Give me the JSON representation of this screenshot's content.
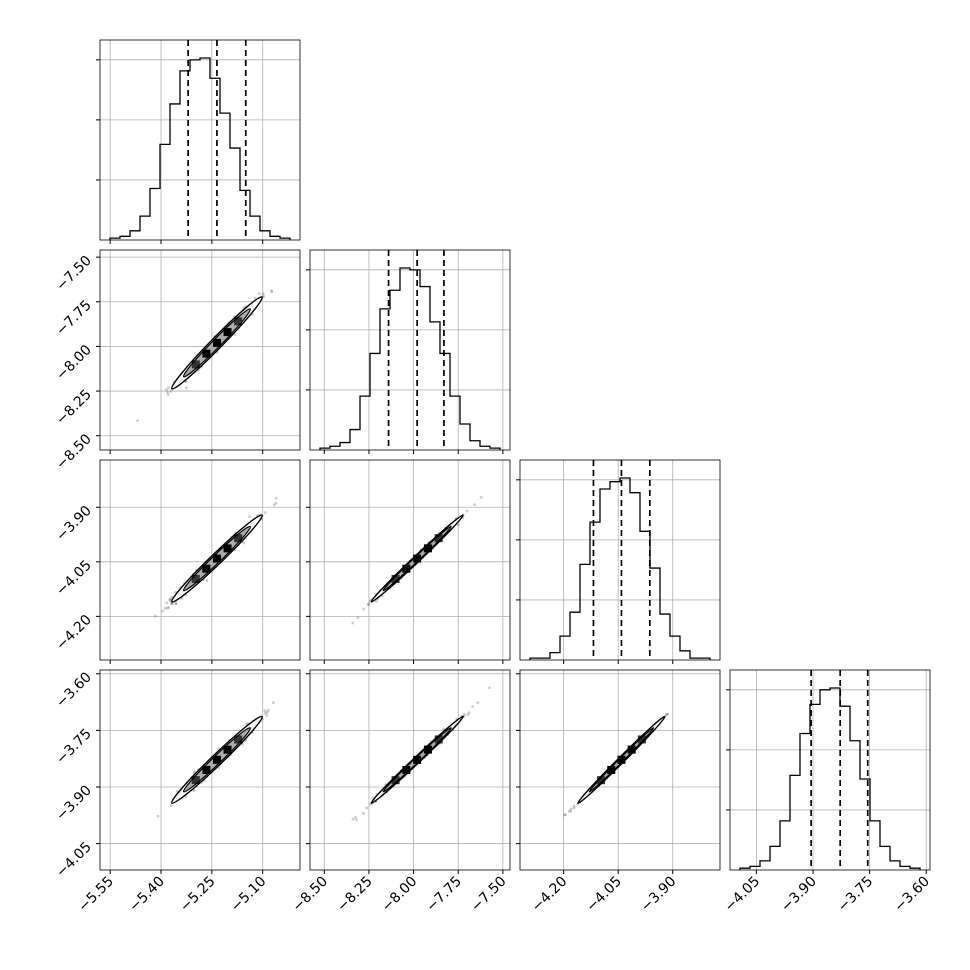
{
  "chart_data": {
    "type": "corner",
    "grid": true,
    "parameters": [
      {
        "ticks": [
          -5.55,
          -5.4,
          -5.25,
          -5.1
        ],
        "tick_labels": [
          "−5.55",
          "−5.40",
          "−5.25",
          "−5.10"
        ],
        "range": [
          -5.58,
          -4.99
        ],
        "median": -5.235,
        "quantiles": [
          -5.32,
          -5.15
        ],
        "hist_counts": [
          1,
          2,
          5,
          13,
          28,
          52,
          74,
          92,
          98,
          99,
          88,
          69,
          50,
          27,
          13,
          5,
          2,
          1
        ]
      },
      {
        "ticks": [
          -8.5,
          -8.25,
          -8.0,
          -7.75,
          -7.5
        ],
        "tick_labels": [
          "−8.50",
          "−8.25",
          "−8.00",
          "−7.75",
          "−7.50"
        ],
        "range": [
          -8.58,
          -7.46
        ],
        "median": -7.98,
        "quantiles": [
          -8.14,
          -7.83
        ],
        "hist_counts": [
          1,
          2,
          4,
          11,
          29,
          52,
          76,
          86,
          98,
          97,
          88,
          69,
          52,
          29,
          14,
          5,
          2,
          1
        ]
      },
      {
        "ticks": [
          -4.2,
          -4.05,
          -3.9
        ],
        "tick_labels": [
          "−4.20",
          "−4.05",
          "−3.90"
        ],
        "range": [
          -4.32,
          -3.77
        ],
        "median": -4.041,
        "quantiles": [
          -4.118,
          -3.963
        ],
        "hist_counts": [
          1,
          1,
          4,
          13,
          26,
          52,
          75,
          93,
          97,
          99,
          91,
          70,
          50,
          25,
          13,
          5,
          1,
          1
        ]
      },
      {
        "ticks": [
          -4.05,
          -3.9,
          -3.75,
          -3.6
        ],
        "tick_labels": [
          "−4.05",
          "−3.90",
          "−3.75",
          "−3.60"
        ],
        "range": [
          -4.12,
          -3.59
        ],
        "median": -3.828,
        "quantiles": [
          -3.905,
          -3.755
        ],
        "hist_counts": [
          1,
          2,
          5,
          13,
          27,
          52,
          75,
          91,
          99,
          100,
          90,
          71,
          50,
          27,
          13,
          5,
          2,
          1
        ]
      }
    ],
    "stds": [
      0.058,
      0.112,
      0.052,
      0.05
    ],
    "correlations": [
      [
        1,
        0.985,
        0.985,
        0.985
      ],
      [
        0.985,
        1,
        0.995,
        0.995
      ],
      [
        0.985,
        0.995,
        1,
        0.999
      ],
      [
        0.985,
        0.995,
        0.999,
        1
      ]
    ]
  }
}
